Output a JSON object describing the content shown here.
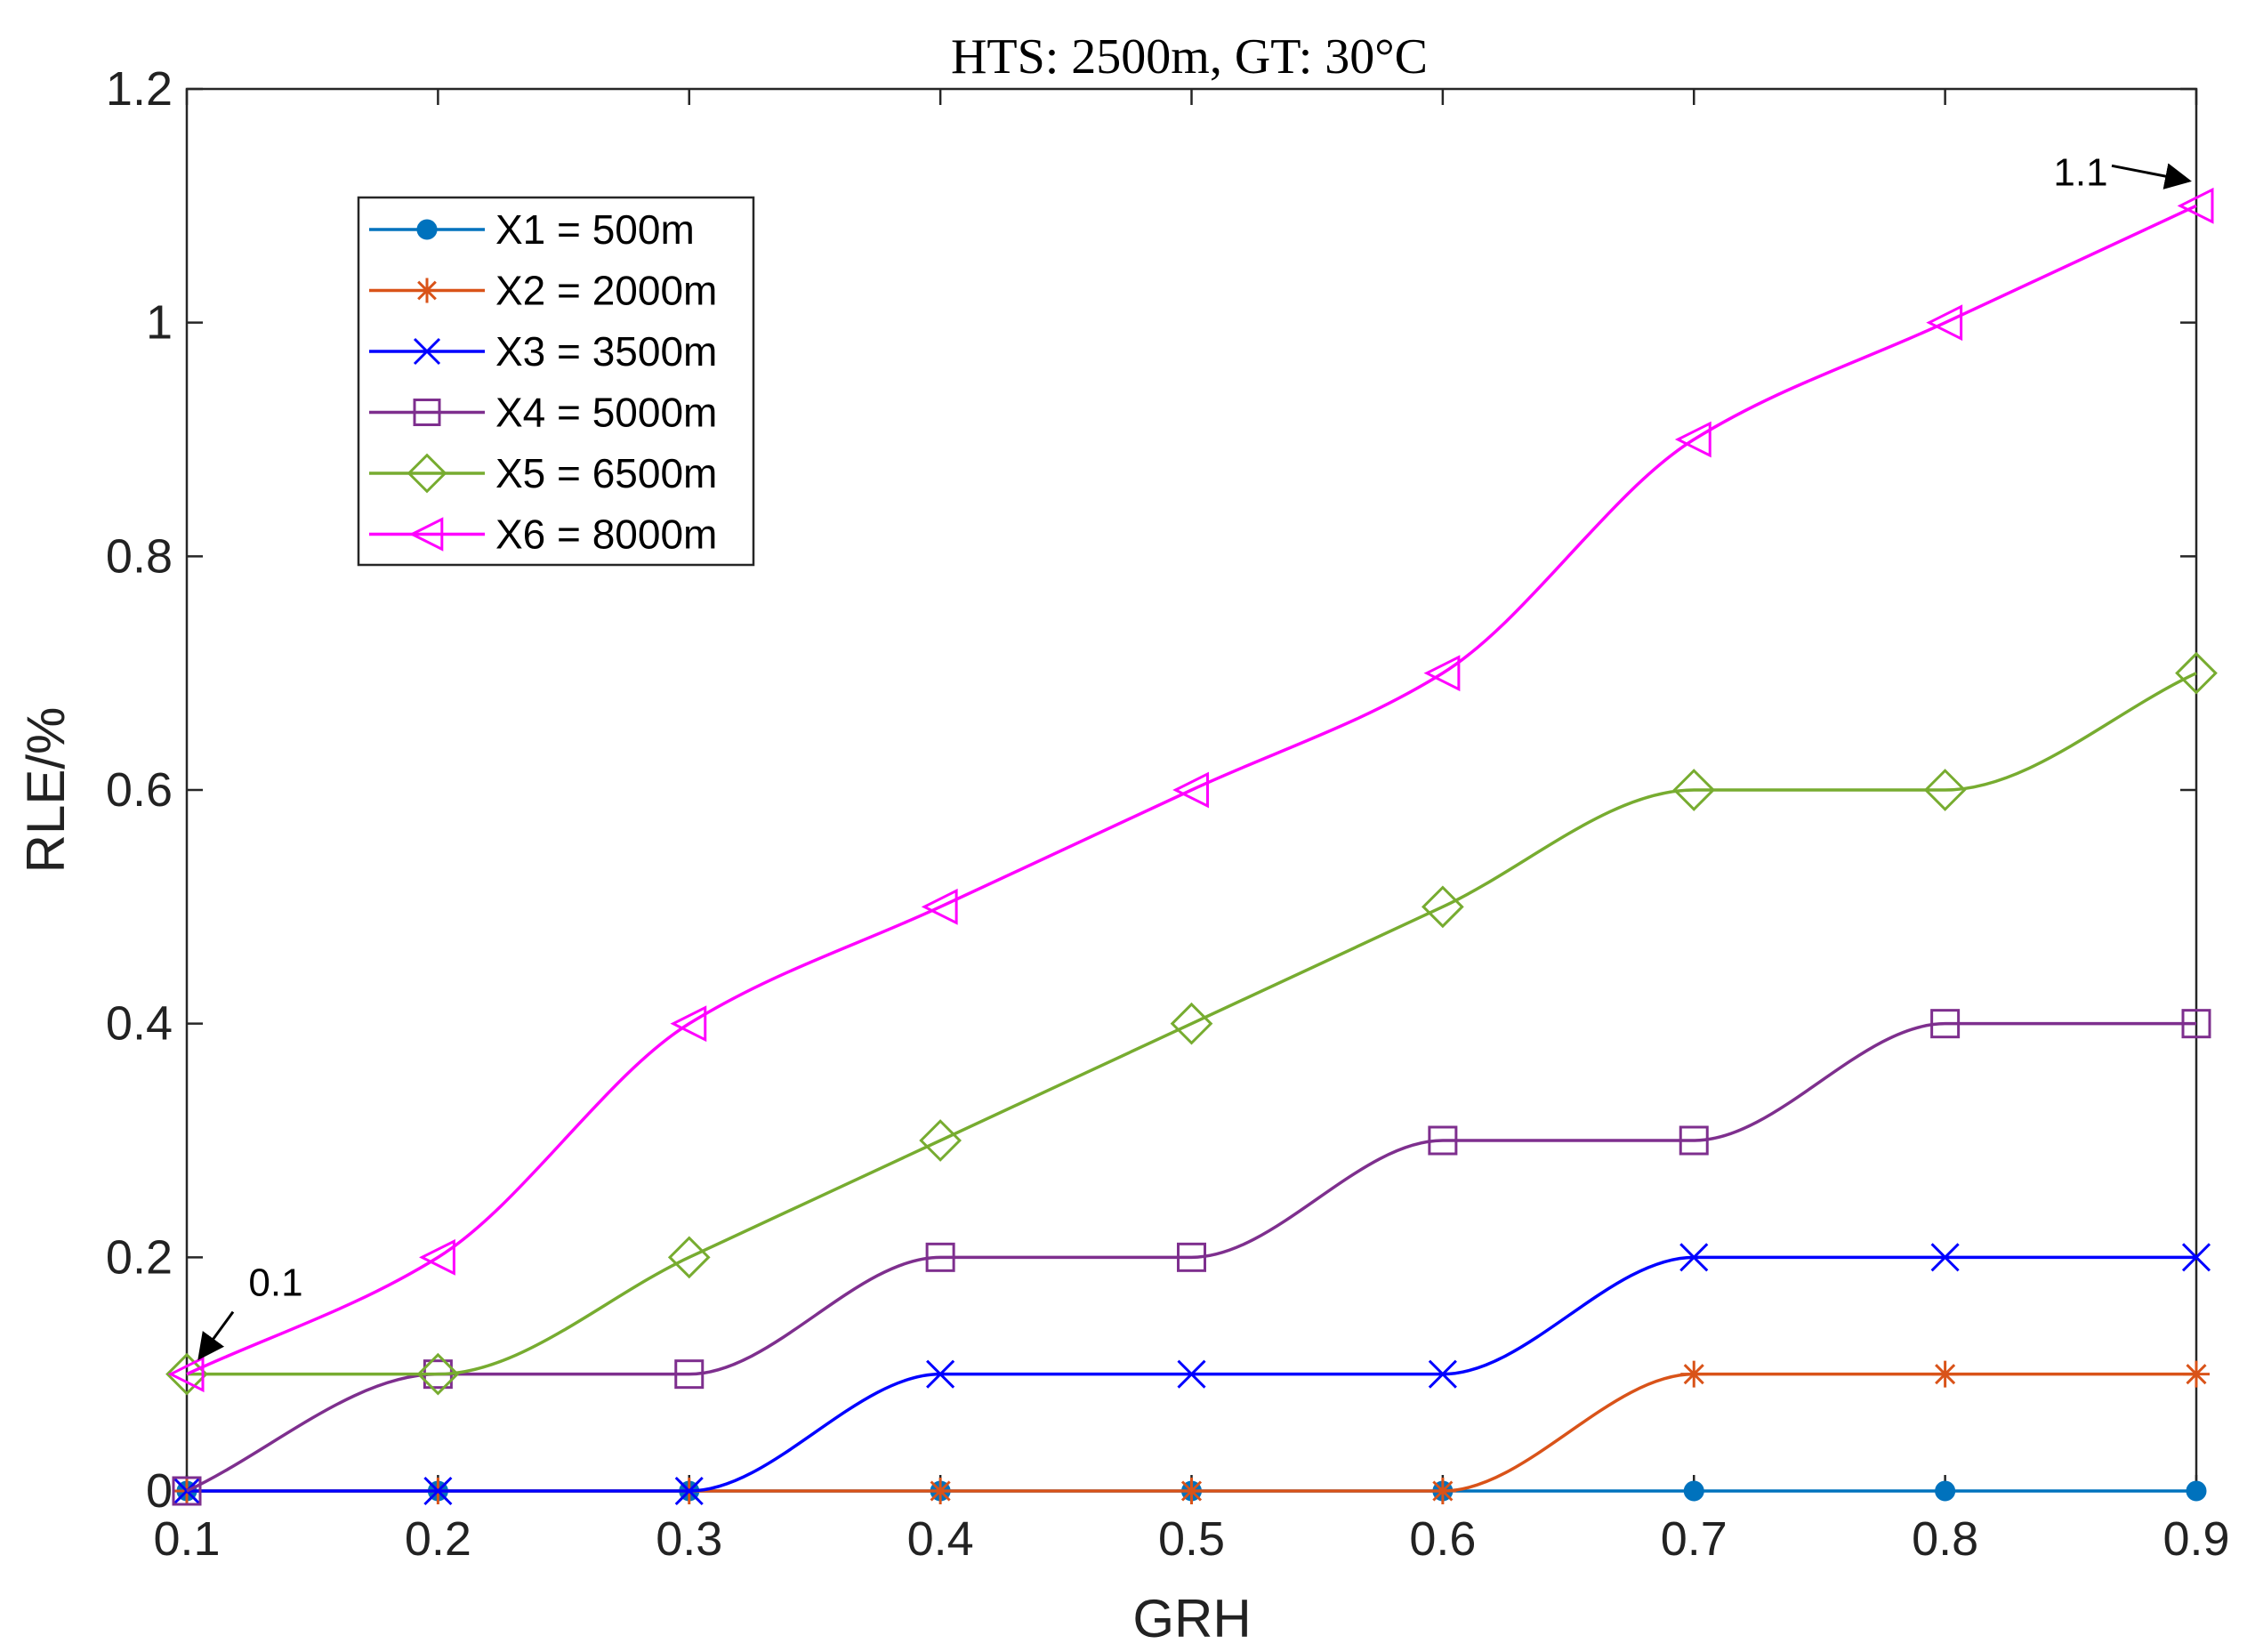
{
  "chart_data": {
    "type": "line",
    "title": "HTS: 2500m, GT: 30°C",
    "xlabel": "GRH",
    "ylabel": "RLE/%",
    "x": [
      0.1,
      0.2,
      0.3,
      0.4,
      0.5,
      0.6,
      0.7,
      0.8,
      0.9
    ],
    "xlim": [
      0.1,
      0.9
    ],
    "ylim": [
      0,
      1.2
    ],
    "xticks": [
      "0.1",
      "0.2",
      "0.3",
      "0.4",
      "0.5",
      "0.6",
      "0.7",
      "0.8",
      "0.9"
    ],
    "yticks": [
      "0",
      "0.2",
      "0.4",
      "0.6",
      "0.8",
      "1",
      "1.2"
    ],
    "legend_position": "top-left",
    "grid": false,
    "series": [
      {
        "name": "X1 = 500m",
        "color": "#0072BD",
        "marker": "dot",
        "values": [
          0,
          0,
          0,
          0,
          0,
          0,
          0,
          0,
          0
        ]
      },
      {
        "name": "X2 = 2000m",
        "color": "#D95319",
        "marker": "asterisk",
        "values": [
          0,
          0,
          0,
          0,
          0,
          0,
          0.1,
          0.1,
          0.1
        ]
      },
      {
        "name": "X3 = 3500m",
        "color": "#0000FF",
        "marker": "cross",
        "values": [
          0,
          0,
          0,
          0.1,
          0.1,
          0.1,
          0.2,
          0.2,
          0.2
        ]
      },
      {
        "name": "X4 = 5000m",
        "color": "#7E2F8E",
        "marker": "square",
        "values": [
          0,
          0.1,
          0.1,
          0.2,
          0.2,
          0.3,
          0.3,
          0.4,
          0.4
        ]
      },
      {
        "name": "X5 = 6500m",
        "color": "#77AC30",
        "marker": "diamond",
        "values": [
          0.1,
          0.1,
          0.2,
          0.3,
          0.4,
          0.5,
          0.6,
          0.6,
          0.7
        ]
      },
      {
        "name": "X6 = 8000m",
        "color": "#FF00FF",
        "marker": "triangle-left",
        "values": [
          0.1,
          0.2,
          0.4,
          0.5,
          0.6,
          0.7,
          0.9,
          1.0,
          1.1
        ]
      }
    ],
    "annotations": [
      {
        "text": "0.1",
        "x": 0.1,
        "y": 0.1
      },
      {
        "text": "1.1",
        "x": 0.9,
        "y": 1.1
      }
    ]
  }
}
